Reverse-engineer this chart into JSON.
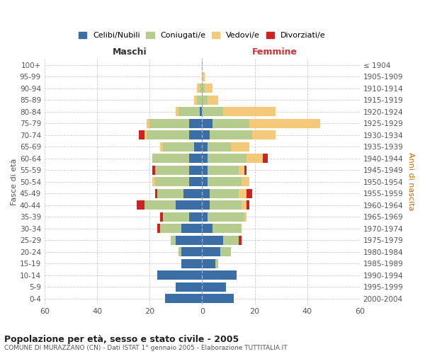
{
  "age_groups": [
    "0-4",
    "5-9",
    "10-14",
    "15-19",
    "20-24",
    "25-29",
    "30-34",
    "35-39",
    "40-44",
    "45-49",
    "50-54",
    "55-59",
    "60-64",
    "65-69",
    "70-74",
    "75-79",
    "80-84",
    "85-89",
    "90-94",
    "95-99",
    "100+"
  ],
  "birth_years": [
    "2000-2004",
    "1995-1999",
    "1990-1994",
    "1985-1989",
    "1980-1984",
    "1975-1979",
    "1970-1974",
    "1965-1969",
    "1960-1964",
    "1955-1959",
    "1950-1954",
    "1945-1949",
    "1940-1944",
    "1935-1939",
    "1930-1934",
    "1925-1929",
    "1920-1924",
    "1915-1919",
    "1910-1914",
    "1905-1909",
    "≤ 1904"
  ],
  "maschi": {
    "celibi": [
      14,
      10,
      17,
      8,
      8,
      10,
      8,
      5,
      10,
      7,
      5,
      5,
      5,
      3,
      5,
      5,
      1,
      0,
      0,
      0,
      0
    ],
    "coniugati": [
      0,
      0,
      0,
      0,
      1,
      2,
      8,
      10,
      12,
      10,
      13,
      13,
      14,
      12,
      16,
      15,
      8,
      2,
      1,
      0,
      0
    ],
    "vedovi": [
      0,
      0,
      0,
      0,
      0,
      0,
      0,
      0,
      0,
      0,
      1,
      0,
      0,
      1,
      1,
      1,
      1,
      1,
      1,
      0,
      0
    ],
    "divorziati": [
      0,
      0,
      0,
      0,
      0,
      0,
      1,
      1,
      3,
      1,
      0,
      1,
      0,
      0,
      2,
      0,
      0,
      0,
      0,
      0,
      0
    ]
  },
  "femmine": {
    "nubili": [
      12,
      9,
      13,
      5,
      7,
      8,
      4,
      2,
      3,
      3,
      2,
      2,
      2,
      2,
      3,
      4,
      0,
      0,
      0,
      0,
      0
    ],
    "coniugate": [
      0,
      0,
      0,
      1,
      4,
      6,
      11,
      14,
      12,
      11,
      13,
      12,
      15,
      9,
      16,
      14,
      8,
      2,
      1,
      0,
      0
    ],
    "vedove": [
      0,
      0,
      0,
      0,
      0,
      0,
      0,
      1,
      2,
      3,
      3,
      2,
      6,
      7,
      9,
      27,
      20,
      4,
      3,
      1,
      0
    ],
    "divorziate": [
      0,
      0,
      0,
      0,
      0,
      1,
      0,
      0,
      1,
      2,
      0,
      1,
      2,
      0,
      0,
      0,
      0,
      0,
      0,
      0,
      0
    ]
  },
  "colors": {
    "celibi_nubili": "#3a6ea5",
    "coniugati": "#b5cc8e",
    "vedovi": "#f5c97a",
    "divorziati": "#cc2222"
  },
  "xlim": 60,
  "title": "Popolazione per età, sesso e stato civile - 2005",
  "subtitle": "COMUNE DI MURAZZANO (CN) - Dati ISTAT 1° gennaio 2005 - Elaborazione TUTTITALIA.IT",
  "ylabel_left": "Fasce di età",
  "ylabel_right": "Anni di nascita",
  "xlabel_left": "Maschi",
  "xlabel_right": "Femmine"
}
